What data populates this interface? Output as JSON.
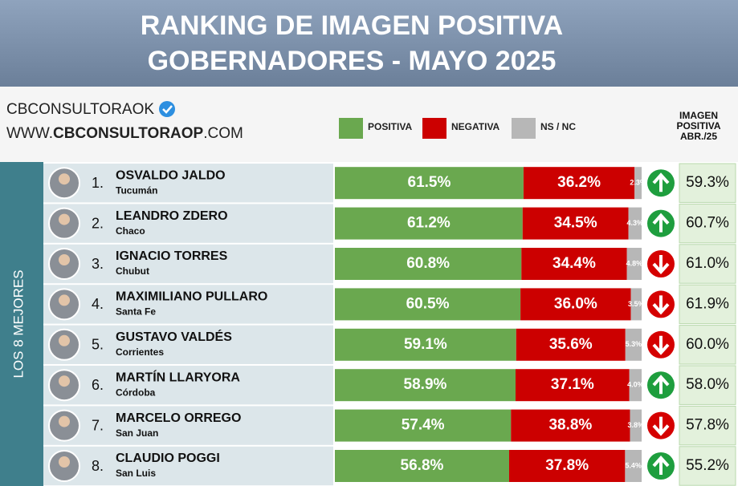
{
  "chart_data": {
    "type": "bar",
    "orientation": "horizontal",
    "stacked": true,
    "title": "RANKING DE IMAGEN POSITIVA",
    "subtitle": "GOBERNADORES - MAYO 2025",
    "brand": "CBCONSULTORAOK",
    "website_prefix": "WWW.",
    "website_name": "CBCONSULTORAOP",
    "website_suffix": ".COM",
    "group_label": "LOS 8 MEJORES",
    "previous_header": "IMAGEN POSITIVA ABR./25",
    "ranks": [
      "1.",
      "2.",
      "3.",
      "4.",
      "5.",
      "6.",
      "7.",
      "8."
    ],
    "categories": [
      "OSVALDO JALDO",
      "LEANDRO ZDERO",
      "IGNACIO TORRES",
      "MAXIMILIANO PULLARO",
      "GUSTAVO VALDÉS",
      "MARTÍN LLARYORA",
      "MARCELO ORREGO",
      "CLAUDIO POGGI"
    ],
    "provinces": [
      "Tucumán",
      "Chaco",
      "Chubut",
      "Santa Fe",
      "Corrientes",
      "Córdoba",
      "San Juan",
      "San Luis"
    ],
    "xlim": [
      0,
      100
    ],
    "series": [
      {
        "name": "POSITIVA",
        "color": "#6aa84f",
        "values": [
          61.5,
          61.2,
          60.8,
          60.5,
          59.1,
          58.9,
          57.4,
          56.8
        ],
        "value_labels": [
          "61.5%",
          "61.2%",
          "60.8%",
          "60.5%",
          "59.1%",
          "58.9%",
          "57.4%",
          "56.8%"
        ]
      },
      {
        "name": "NEGATIVA",
        "color": "#cc0000",
        "values": [
          36.2,
          34.5,
          34.4,
          36.0,
          35.6,
          37.1,
          38.8,
          37.8
        ],
        "value_labels": [
          "36.2%",
          "34.5%",
          "34.4%",
          "36.0%",
          "35.6%",
          "37.1%",
          "38.8%",
          "37.8%"
        ]
      },
      {
        "name": "NS / NC",
        "color": "#b7b7b7",
        "values": [
          2.3,
          4.3,
          4.8,
          3.5,
          5.3,
          4.0,
          3.8,
          5.4
        ],
        "value_labels": [
          "2.3%",
          "4.3%",
          "4.8%",
          "3.5%",
          "5.3%",
          "4.0%",
          "3.8%",
          "5.4%"
        ]
      }
    ],
    "trend": [
      "up",
      "up",
      "down",
      "down",
      "down",
      "up",
      "down",
      "up"
    ],
    "trend_colors": {
      "up": "#1e9e3e",
      "down": "#d50000"
    },
    "previous": {
      "values": [
        59.3,
        60.7,
        61.0,
        61.9,
        60.0,
        58.0,
        57.8,
        55.2
      ],
      "value_labels": [
        "59.3%",
        "60.7%",
        "61.0%",
        "61.9%",
        "60.0%",
        "58.0%",
        "57.8%",
        "55.2%"
      ]
    }
  }
}
